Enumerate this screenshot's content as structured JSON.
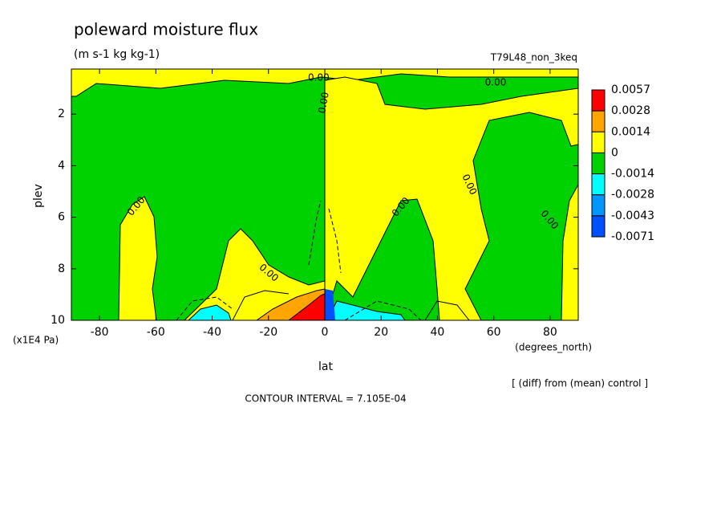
{
  "chart_data": {
    "type": "contour",
    "title": "poleward moisture flux",
    "subtitle": "(m s-1 kg kg-1)",
    "dataset": "T79L48_non_3keq",
    "xlabel": "lat",
    "xunits": "(degrees_north)",
    "ylabel": "plev",
    "yunits": "(x1E4 Pa)",
    "note": "[ (diff) from (mean) control ]",
    "contour_interval": "CONTOUR INTERVAL = 7.105E-04",
    "xlim": [
      -90,
      90
    ],
    "xticks": [
      -80,
      -60,
      -40,
      -20,
      0,
      20,
      40,
      60,
      80
    ],
    "ylim": [
      0.25,
      10
    ],
    "yticks": [
      2,
      4,
      6,
      8,
      10
    ],
    "y_inverted": true,
    "levels": [
      0.0057,
      0.0028,
      0.0014,
      0,
      -0.0014,
      -0.0028,
      -0.0043,
      -0.0071
    ],
    "level_colors": [
      "#ff0000",
      "#ffa500",
      "#ffff00",
      "#00d200",
      "#00ffff",
      "#0096ff",
      "#0050ff"
    ],
    "contour_labels": [
      "0.00",
      "0.00",
      "0.00",
      "0.00",
      "0.00",
      "0.00",
      "0.00",
      "0.00"
    ]
  }
}
